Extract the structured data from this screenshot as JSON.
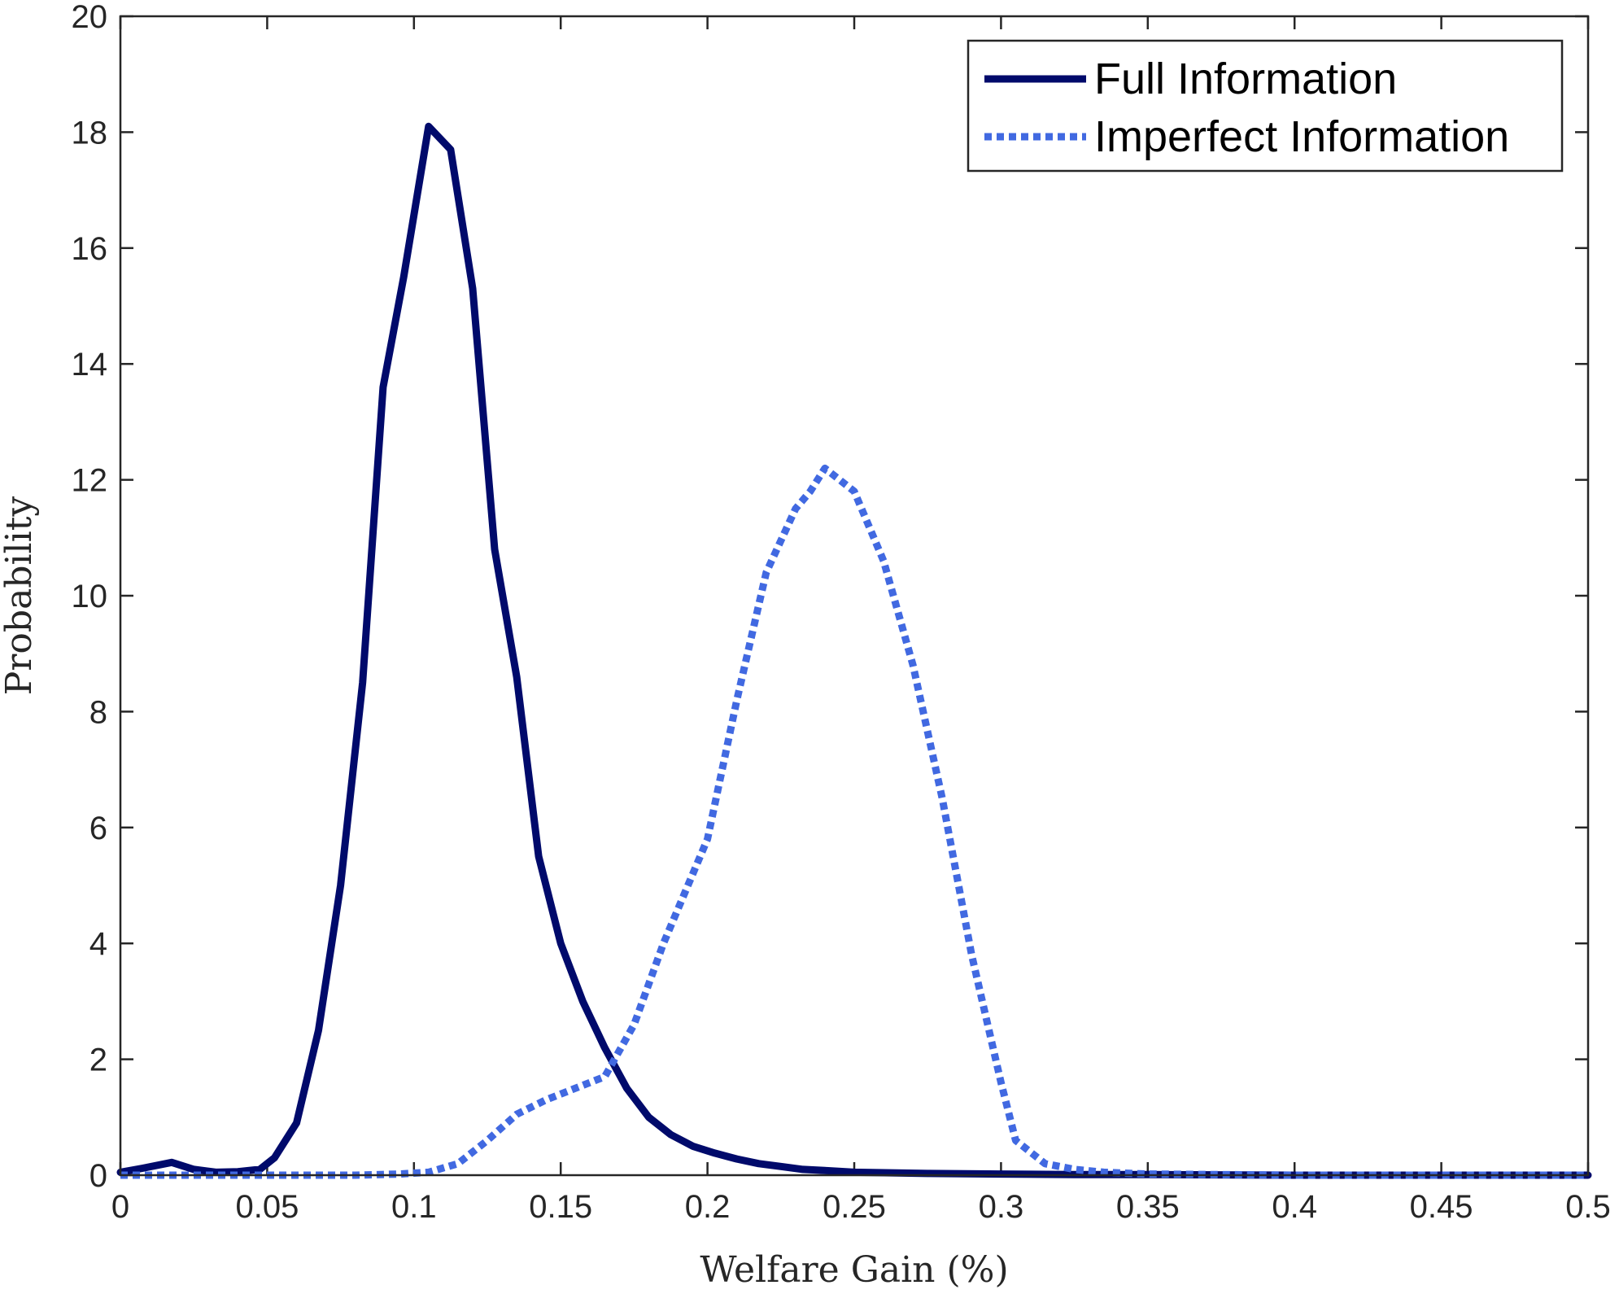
{
  "chart_data": {
    "type": "line",
    "title": "",
    "xlabel": "Welfare Gain (%)",
    "ylabel": "Probability",
    "xlim": [
      0,
      0.5
    ],
    "ylim": [
      0,
      20
    ],
    "xticks": [
      0,
      0.05,
      0.1,
      0.15,
      0.2,
      0.25,
      0.3,
      0.35,
      0.4,
      0.45,
      0.5
    ],
    "xtick_labels": [
      "0",
      "0.05",
      "0.1",
      "0.15",
      "0.2",
      "0.25",
      "0.3",
      "0.35",
      "0.4",
      "0.45",
      "0.5"
    ],
    "yticks": [
      0,
      2,
      4,
      6,
      8,
      10,
      12,
      14,
      16,
      18,
      20
    ],
    "ytick_labels": [
      "0",
      "2",
      "4",
      "6",
      "8",
      "10",
      "12",
      "14",
      "16",
      "18",
      "20"
    ],
    "grid": false,
    "legend_position": "top-right",
    "series": [
      {
        "name": "Full Information",
        "color": "#000a6b",
        "style": "solid",
        "x": [
          0,
          0.0075,
          0.0175,
          0.025,
          0.0325,
          0.04,
          0.0475,
          0.0525,
          0.06,
          0.0675,
          0.075,
          0.0825,
          0.0895,
          0.0965,
          0.105,
          0.1125,
          0.12,
          0.1275,
          0.135,
          0.1425,
          0.15,
          0.1575,
          0.165,
          0.1725,
          0.18,
          0.1875,
          0.195,
          0.2025,
          0.21,
          0.2175,
          0.225,
          0.2325,
          0.24,
          0.25,
          0.275,
          0.3,
          0.325,
          0.35,
          0.4,
          0.45,
          0.5
        ],
        "y": [
          0.05,
          0.12,
          0.22,
          0.1,
          0.05,
          0.06,
          0.1,
          0.3,
          0.9,
          2.5,
          5.0,
          8.5,
          13.6,
          15.5,
          18.1,
          17.7,
          15.3,
          10.8,
          8.6,
          5.5,
          4.0,
          3.0,
          2.2,
          1.5,
          1.0,
          0.7,
          0.5,
          0.38,
          0.28,
          0.2,
          0.15,
          0.1,
          0.08,
          0.05,
          0.03,
          0.02,
          0.01,
          0.01,
          0.0,
          0.0,
          0.0
        ]
      },
      {
        "name": "Imperfect Information",
        "color": "#4169e1",
        "style": "dotted",
        "x": [
          0,
          0.05,
          0.08,
          0.095,
          0.105,
          0.115,
          0.125,
          0.135,
          0.145,
          0.155,
          0.165,
          0.175,
          0.185,
          0.19,
          0.2,
          0.21,
          0.22,
          0.23,
          0.235,
          0.24,
          0.245,
          0.25,
          0.26,
          0.27,
          0.28,
          0.29,
          0.3,
          0.305,
          0.315,
          0.325,
          0.335,
          0.35,
          0.4,
          0.45,
          0.5
        ],
        "y": [
          0.0,
          0.0,
          0.0,
          0.02,
          0.05,
          0.2,
          0.6,
          1.05,
          1.3,
          1.5,
          1.7,
          2.6,
          4.0,
          4.6,
          5.8,
          8.2,
          10.4,
          11.5,
          11.8,
          12.2,
          12.0,
          11.8,
          10.6,
          8.8,
          6.5,
          3.8,
          1.6,
          0.6,
          0.2,
          0.1,
          0.05,
          0.02,
          0.0,
          0.0,
          0.0
        ]
      }
    ]
  }
}
